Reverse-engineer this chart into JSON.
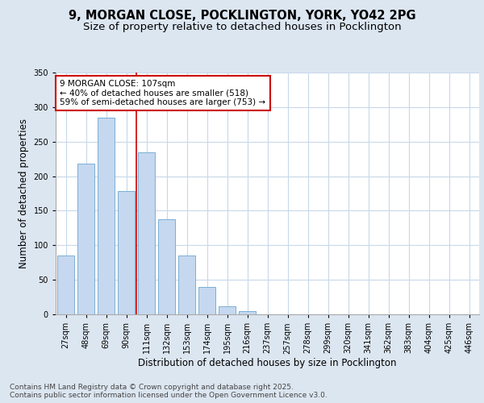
{
  "title_line1": "9, MORGAN CLOSE, POCKLINGTON, YORK, YO42 2PG",
  "title_line2": "Size of property relative to detached houses in Pocklington",
  "xlabel": "Distribution of detached houses by size in Pocklington",
  "ylabel": "Number of detached properties",
  "categories": [
    "27sqm",
    "48sqm",
    "69sqm",
    "90sqm",
    "111sqm",
    "132sqm",
    "153sqm",
    "174sqm",
    "195sqm",
    "216sqm",
    "237sqm",
    "257sqm",
    "278sqm",
    "299sqm",
    "320sqm",
    "341sqm",
    "362sqm",
    "383sqm",
    "404sqm",
    "425sqm",
    "446sqm"
  ],
  "values": [
    85,
    218,
    285,
    178,
    235,
    138,
    85,
    40,
    12,
    5,
    0,
    0,
    0,
    0,
    0,
    0,
    0,
    0,
    0,
    0,
    0
  ],
  "bar_color": "#c5d8ef",
  "bar_edge_color": "#7bafd4",
  "line_x_index": 4.0,
  "annotation_text": "9 MORGAN CLOSE: 107sqm\n← 40% of detached houses are smaller (518)\n59% of semi-detached houses are larger (753) →",
  "annotation_box_color": "#ffffff",
  "annotation_box_edge_color": "#cc0000",
  "line_color": "#cc0000",
  "ylim": [
    0,
    350
  ],
  "yticks": [
    0,
    50,
    100,
    150,
    200,
    250,
    300,
    350
  ],
  "bg_color": "#dce6f1",
  "plot_bg_color": "#ffffff",
  "footer_text": "Contains HM Land Registry data © Crown copyright and database right 2025.\nContains public sector information licensed under the Open Government Licence v3.0.",
  "title_fontsize": 10.5,
  "subtitle_fontsize": 9.5,
  "tick_fontsize": 7,
  "label_fontsize": 8.5
}
